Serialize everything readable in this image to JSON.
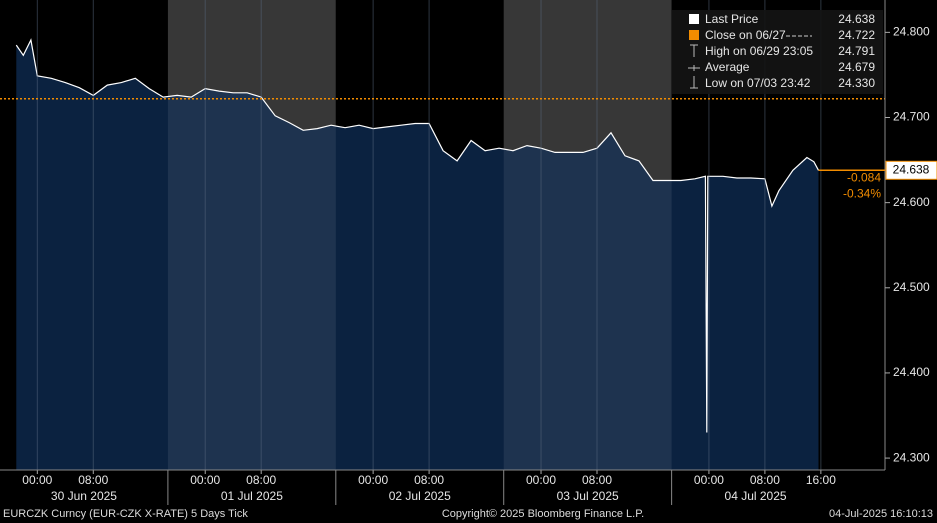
{
  "chart_data": {
    "type": "line",
    "xlim": [
      "2025-06-29T18:40",
      "2025-07-05T01:10"
    ],
    "ylim": [
      24.286,
      24.838
    ],
    "yticks": [
      {
        "value": 24.3,
        "label": "24.300"
      },
      {
        "value": 24.4,
        "label": "24.400"
      },
      {
        "value": 24.5,
        "label": "24.500"
      },
      {
        "value": 24.6,
        "label": "24.600"
      },
      {
        "value": 24.7,
        "label": "24.700"
      },
      {
        "value": 24.8,
        "label": "24.800"
      }
    ],
    "xticks": [
      {
        "value": "2025-06-30T00:00",
        "label": "00:00"
      },
      {
        "value": "2025-06-30T08:00",
        "label": "08:00"
      },
      {
        "value": "2025-07-01T00:00",
        "label": "00:00"
      },
      {
        "value": "2025-07-01T08:00",
        "label": "08:00"
      },
      {
        "value": "2025-07-02T00:00",
        "label": "00:00"
      },
      {
        "value": "2025-07-02T08:00",
        "label": "08:00"
      },
      {
        "value": "2025-07-03T00:00",
        "label": "00:00"
      },
      {
        "value": "2025-07-03T08:00",
        "label": "08:00"
      },
      {
        "value": "2025-07-04T00:00",
        "label": "00:00"
      },
      {
        "value": "2025-07-04T08:00",
        "label": "08:00"
      },
      {
        "value": "2025-07-04T16:00",
        "label": "16:00"
      }
    ],
    "sessions": [
      {
        "label": "30 Jun 2025",
        "start": "2025-06-29T18:40",
        "end": "2025-06-30T18:40"
      },
      {
        "label": "01 Jul 2025",
        "start": "2025-06-30T18:40",
        "end": "2025-07-01T18:40"
      },
      {
        "label": "02 Jul 2025",
        "start": "2025-07-01T18:40",
        "end": "2025-07-02T18:40"
      },
      {
        "label": "03 Jul 2025",
        "start": "2025-07-02T18:40",
        "end": "2025-07-03T18:40"
      },
      {
        "label": "04 Jul 2025",
        "start": "2025-07-03T18:40",
        "end": "2025-07-04T18:40"
      }
    ],
    "series": [
      {
        "name": "Last Price",
        "color": "#ffffff",
        "fill": "#0b2240",
        "x": [
          "2025-06-29T21:00",
          "2025-06-29T22:00",
          "2025-06-29T23:05",
          "2025-06-30T00:00",
          "2025-06-30T02:00",
          "2025-06-30T04:00",
          "2025-06-30T06:00",
          "2025-06-30T08:00",
          "2025-06-30T10:00",
          "2025-06-30T12:00",
          "2025-06-30T14:00",
          "2025-06-30T16:00",
          "2025-06-30T18:00",
          "2025-06-30T20:00",
          "2025-06-30T22:00",
          "2025-07-01T00:00",
          "2025-07-01T02:00",
          "2025-07-01T04:00",
          "2025-07-01T06:00",
          "2025-07-01T08:00",
          "2025-07-01T10:00",
          "2025-07-01T12:00",
          "2025-07-01T14:00",
          "2025-07-01T16:00",
          "2025-07-01T18:00",
          "2025-07-01T20:00",
          "2025-07-01T22:00",
          "2025-07-02T00:00",
          "2025-07-02T02:00",
          "2025-07-02T04:00",
          "2025-07-02T06:00",
          "2025-07-02T08:00",
          "2025-07-02T10:00",
          "2025-07-02T12:00",
          "2025-07-02T14:00",
          "2025-07-02T16:00",
          "2025-07-02T18:00",
          "2025-07-02T20:00",
          "2025-07-02T22:00",
          "2025-07-03T00:00",
          "2025-07-03T02:00",
          "2025-07-03T04:00",
          "2025-07-03T06:00",
          "2025-07-03T08:00",
          "2025-07-03T10:00",
          "2025-07-03T12:00",
          "2025-07-03T14:00",
          "2025-07-03T16:00",
          "2025-07-03T18:00",
          "2025-07-03T20:00",
          "2025-07-03T22:00",
          "2025-07-03T23:30",
          "2025-07-03T23:42",
          "2025-07-03T23:50",
          "2025-07-04T02:00",
          "2025-07-04T04:00",
          "2025-07-04T06:00",
          "2025-07-04T08:00",
          "2025-07-04T09:00",
          "2025-07-04T10:00",
          "2025-07-04T12:00",
          "2025-07-04T14:00",
          "2025-07-04T15:00",
          "2025-07-04T15:40"
        ],
        "values": [
          24.785,
          24.773,
          24.791,
          24.749,
          24.746,
          24.741,
          24.735,
          24.726,
          24.738,
          24.741,
          24.746,
          24.734,
          24.724,
          24.726,
          24.724,
          24.734,
          24.731,
          24.729,
          24.729,
          24.724,
          24.702,
          24.694,
          24.685,
          24.687,
          24.691,
          24.688,
          24.691,
          24.687,
          24.689,
          24.691,
          24.693,
          24.693,
          24.661,
          24.649,
          24.673,
          24.661,
          24.664,
          24.661,
          24.667,
          24.664,
          24.659,
          24.659,
          24.659,
          24.664,
          24.682,
          24.655,
          24.649,
          24.626,
          24.626,
          24.626,
          24.628,
          24.631,
          24.33,
          24.631,
          24.631,
          24.629,
          24.629,
          24.628,
          24.596,
          24.614,
          24.638,
          24.653,
          24.648,
          24.638
        ]
      }
    ],
    "close_line": {
      "value": 24.722,
      "color": "#f28c00"
    },
    "last_price": {
      "value": 24.638,
      "color": "#f28c00",
      "change": "-0.084",
      "change_pct": "-0.34%"
    },
    "legend": [
      {
        "name": "Last Price",
        "value": 24.638
      },
      {
        "name": "Close on 06/27",
        "value": 24.722
      },
      {
        "name": "High on 06/29 23:05",
        "value": 24.791
      },
      {
        "name": "Average",
        "value": 24.679
      },
      {
        "name": "Low on 07/03 23:42",
        "value": {
          "value": 24.33,
          "label": "24.330"
        }
      }
    ]
  },
  "footer": {
    "left": "EURCZK Curncy (EUR-CZK X-RATE) 5 Days  Tick",
    "center": "Copyright© 2025 Bloomberg Finance L.P.",
    "right": "04-Jul-2025 16:10:13"
  }
}
